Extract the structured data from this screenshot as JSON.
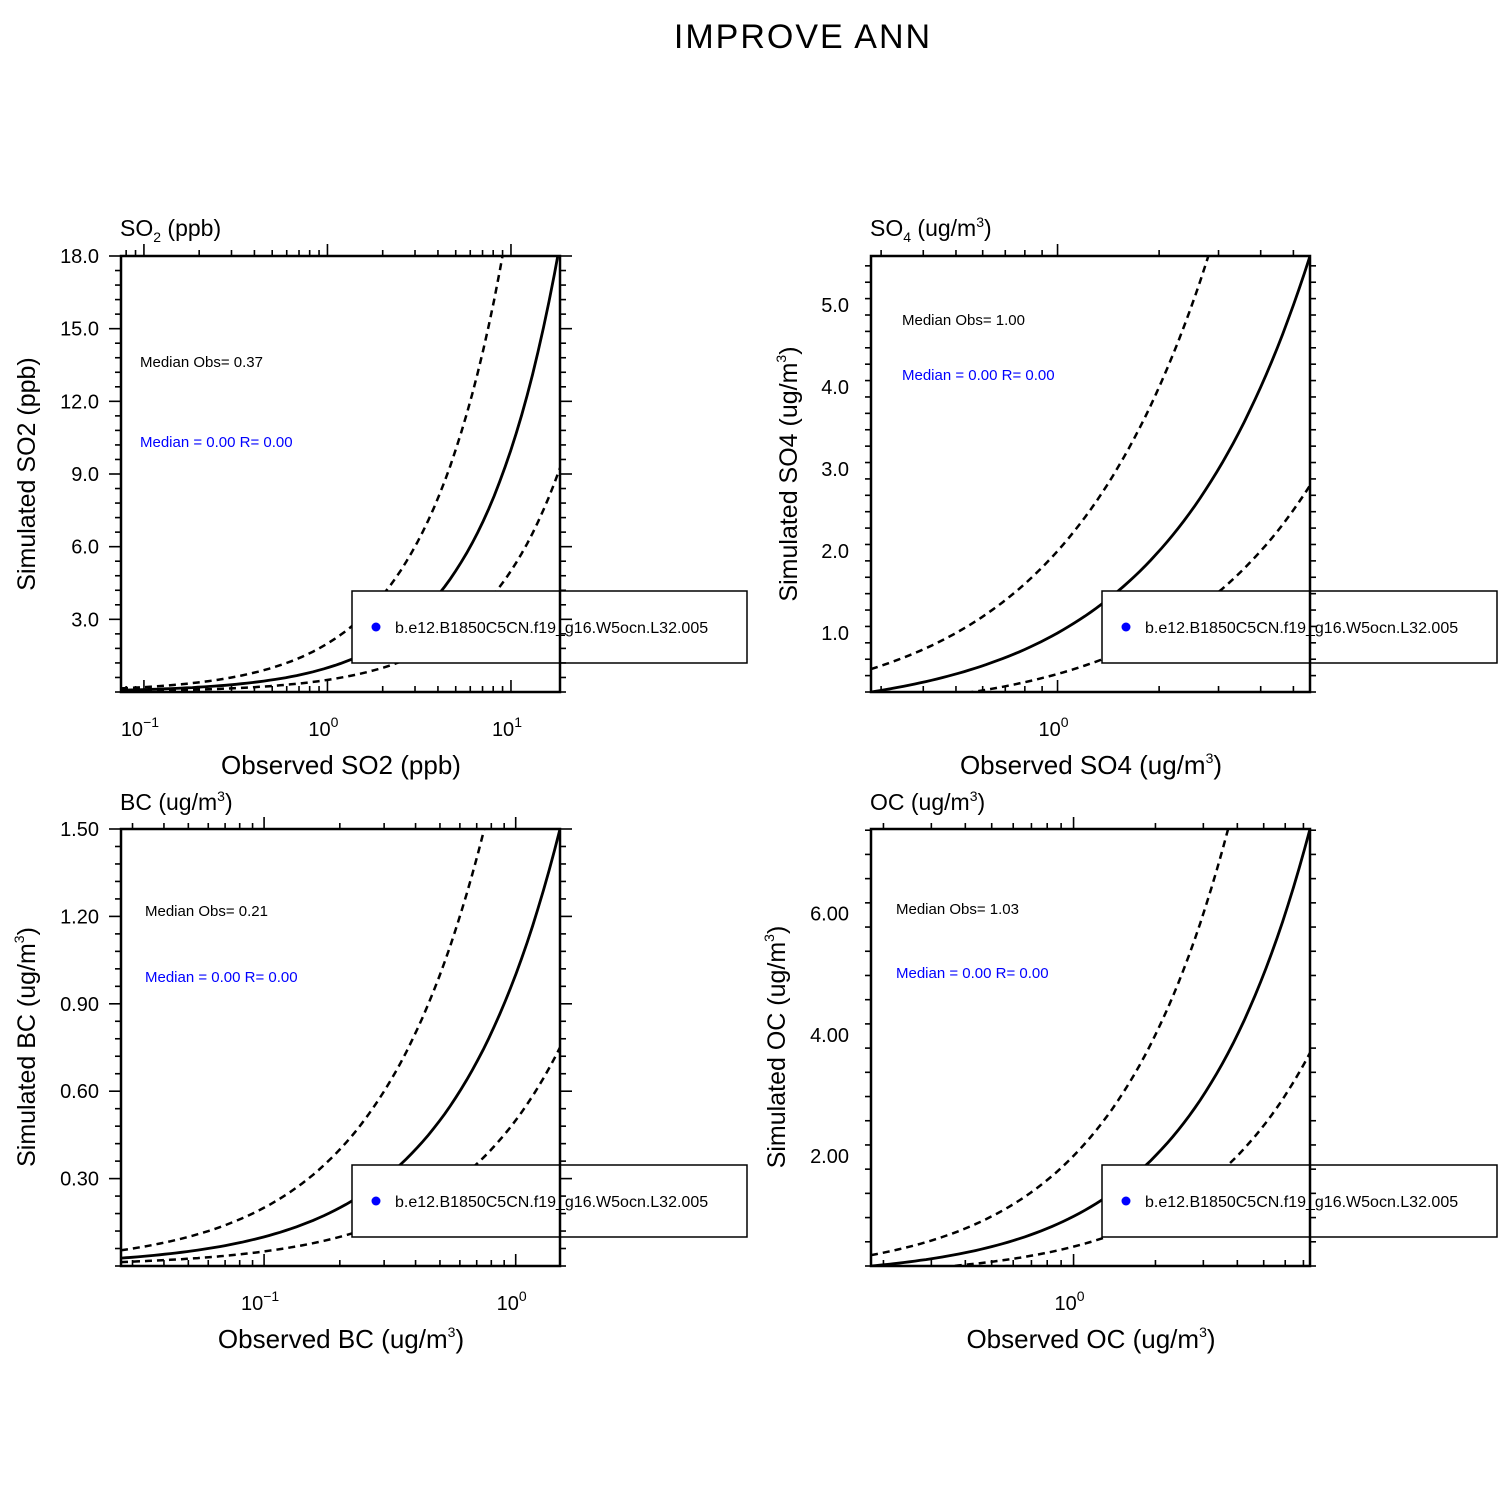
{
  "figure_title": "IMPROVE ANN",
  "chart_data": [
    {
      "type": "scatter",
      "panel_title": "SO",
      "panel_title_sub": "2",
      "panel_title_rest": " (ppb)",
      "xlabel": "Observed SO2 (ppb)",
      "xlabel_sup": "",
      "xlabel_end": "",
      "ylabel": "Simulated SO2 (ppb)",
      "ylabel_sup": "",
      "ylabel_end": "",
      "xscale": "log",
      "xlim": [
        0.075,
        18.5
      ],
      "ylim": [
        0.0,
        18.0
      ],
      "x_ticks": [
        {
          "base": "10",
          "exp": "−1",
          "value": 0.1
        },
        {
          "base": "10",
          "exp": "0",
          "value": 1
        },
        {
          "base": "10",
          "exp": "1",
          "value": 10
        }
      ],
      "y_ticks": [
        "3.0",
        "6.0",
        "9.0",
        "12.0",
        "15.0",
        "18.0"
      ],
      "y_tick_values": [
        3,
        6,
        9,
        12,
        15,
        18
      ],
      "median_obs": "Median Obs= 0.37",
      "median_model": "Median = 0.00 R= 0.00",
      "legend_label": "b.e12.B1850C5CN.f19_g16.W5ocn.L32.005",
      "series_color": "#0000ff",
      "reference_lines": {
        "one_to_one": 1,
        "factor_of_two": [
          2,
          0.5
        ]
      },
      "points": []
    },
    {
      "type": "scatter",
      "panel_title": "SO",
      "panel_title_sub": "4",
      "panel_title_rest": " (ug/m",
      "panel_title_sup": "3",
      "panel_title_end": ")",
      "xlabel": "Observed SO4 (ug/m",
      "xlabel_sup": "3",
      "xlabel_end": ")",
      "ylabel": "Simulated SO4 (ug/m",
      "ylabel_sup": "3",
      "ylabel_end": ")",
      "xscale": "log",
      "xlim": [
        0.28,
        5.6
      ],
      "ylim": [
        0.28,
        5.6
      ],
      "x_ticks": [
        {
          "base": "10",
          "exp": "0",
          "value": 1
        }
      ],
      "y_ticks": [
        "1.0",
        "2.0",
        "3.0",
        "4.0",
        "5.0"
      ],
      "y_tick_values": [
        1,
        2,
        3,
        4,
        5
      ],
      "median_obs": "Median Obs= 1.00",
      "median_model": "Median = 0.00 R= 0.00",
      "legend_label": "b.e12.B1850C5CN.f19_g16.W5ocn.L32.005",
      "series_color": "#0000ff",
      "reference_lines": {
        "one_to_one": 1,
        "factor_of_two": [
          2,
          0.5
        ]
      },
      "points": []
    },
    {
      "type": "scatter",
      "panel_title": "BC (ug/m",
      "panel_title_sub": "",
      "panel_title_rest": "",
      "panel_title_sup": "3",
      "panel_title_end": ")",
      "xlabel": "Observed BC (ug/m",
      "xlabel_sup": "3",
      "xlabel_end": ")",
      "ylabel": "Simulated BC (ug/m",
      "ylabel_sup": "3",
      "ylabel_end": ")",
      "xscale": "log",
      "xlim": [
        0.027,
        1.5
      ],
      "ylim": [
        0.0,
        1.5
      ],
      "x_ticks": [
        {
          "base": "10",
          "exp": "−1",
          "value": 0.1
        },
        {
          "base": "10",
          "exp": "0",
          "value": 1
        }
      ],
      "y_ticks": [
        "0.30",
        "0.60",
        "0.90",
        "1.20",
        "1.50"
      ],
      "y_tick_values": [
        0.3,
        0.6,
        0.9,
        1.2,
        1.5
      ],
      "median_obs": "Median Obs= 0.21",
      "median_model": "Median = 0.00 R= 0.00",
      "legend_label": "b.e12.B1850C5CN.f19_g16.W5ocn.L32.005",
      "series_color": "#0000ff",
      "reference_lines": {
        "one_to_one": 1,
        "factor_of_two": [
          2,
          0.5
        ]
      },
      "points": []
    },
    {
      "type": "scatter",
      "panel_title": "OC (ug/m",
      "panel_title_sub": "",
      "panel_title_rest": "",
      "panel_title_sup": "3",
      "panel_title_end": ")",
      "xlabel": "Observed OC (ug/m",
      "xlabel_sup": "3",
      "xlabel_end": ")",
      "ylabel": "Simulated OC (ug/m",
      "ylabel_sup": "3",
      "ylabel_end": ")",
      "xscale": "log",
      "xlim": [
        0.18,
        7.4
      ],
      "ylim": [
        0.18,
        7.4
      ],
      "x_ticks": [
        {
          "base": "10",
          "exp": "0",
          "value": 1
        }
      ],
      "y_ticks": [
        "2.00",
        "4.00",
        "6.00"
      ],
      "y_tick_values": [
        2,
        4,
        6
      ],
      "median_obs": "Median Obs= 1.03",
      "median_model": "Median = 0.00 R= 0.00",
      "legend_label": "b.e12.B1850C5CN.f19_g16.W5ocn.L32.005",
      "series_color": "#0000ff",
      "reference_lines": {
        "one_to_one": 1,
        "factor_of_two": [
          2,
          0.5
        ]
      },
      "points": []
    }
  ]
}
